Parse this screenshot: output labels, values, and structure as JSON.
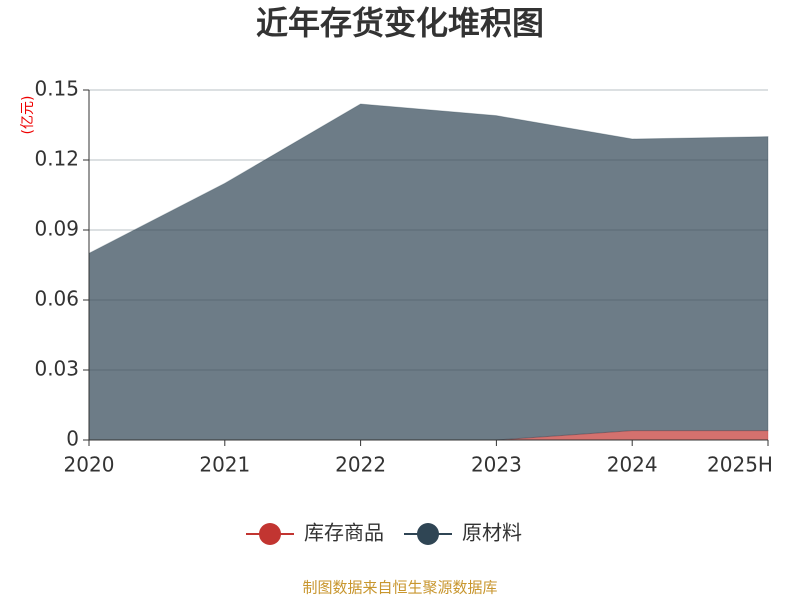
{
  "chart_data": {
    "type": "stacked-area",
    "title": "近年存货变化堆积图",
    "y_label": "(亿元)",
    "categories": [
      "2020",
      "2021",
      "2022",
      "2023",
      "2024",
      "2025H"
    ],
    "series": [
      {
        "name": "库存商品",
        "color": "#c23531",
        "values": [
          0,
          0,
          0,
          0,
          0.004,
          0.004
        ]
      },
      {
        "name": "原材料",
        "color": "#2f4554",
        "values": [
          0.08,
          0.11,
          0.144,
          0.139,
          0.125,
          0.126
        ]
      }
    ],
    "ylim": [
      0,
      0.15
    ],
    "yticks": [
      0,
      0.03,
      0.06,
      0.09,
      0.12,
      0.15
    ],
    "grid": true,
    "legend": "bottom",
    "footer": "制图数据来自恒生聚源数据库"
  }
}
